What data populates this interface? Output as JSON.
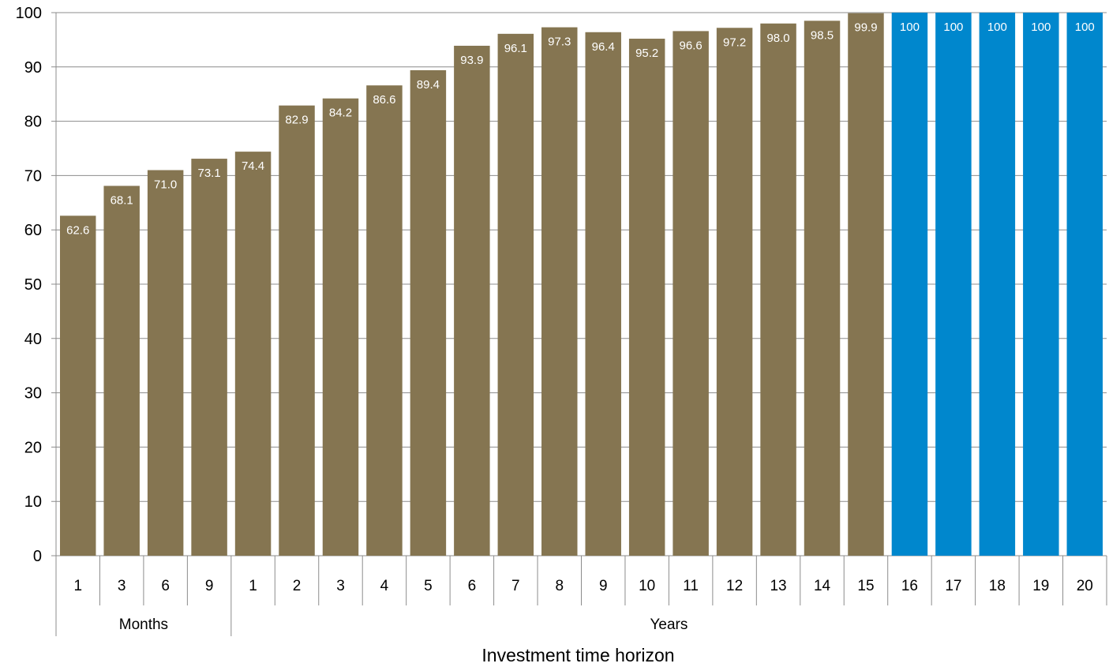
{
  "chart_data": {
    "type": "bar",
    "xlabel": "Investment time horizon",
    "ylabel": "",
    "ylim": [
      0,
      100
    ],
    "yticks": [
      0,
      10,
      20,
      30,
      40,
      50,
      60,
      70,
      80,
      90,
      100
    ],
    "grid": true,
    "categories": [
      "1",
      "3",
      "6",
      "9",
      "1",
      "2",
      "3",
      "4",
      "5",
      "6",
      "7",
      "8",
      "9",
      "10",
      "11",
      "12",
      "13",
      "14",
      "15",
      "16",
      "17",
      "18",
      "19",
      "20"
    ],
    "values": [
      62.6,
      68.1,
      71.0,
      73.1,
      74.4,
      82.9,
      84.2,
      86.6,
      89.4,
      93.9,
      96.1,
      97.3,
      96.4,
      95.2,
      96.6,
      97.2,
      98.0,
      98.5,
      99.9,
      100,
      100,
      100,
      100,
      100
    ],
    "data_labels": [
      "62.6",
      "68.1",
      "71.0",
      "73.1",
      "74.4",
      "82.9",
      "84.2",
      "86.6",
      "89.4",
      "93.9",
      "96.1",
      "97.3",
      "96.4",
      "95.2",
      "96.6",
      "97.2",
      "98.0",
      "98.5",
      "99.9",
      "100",
      "100",
      "100",
      "100",
      "100"
    ],
    "groups": [
      {
        "label": "Months",
        "start": 0,
        "end": 3
      },
      {
        "label": "Years",
        "start": 4,
        "end": 23
      }
    ],
    "colors": {
      "default": "#857551",
      "highlight": "#0087CD",
      "highlight_from_index": 19,
      "grid": "#8c8c8c"
    }
  }
}
